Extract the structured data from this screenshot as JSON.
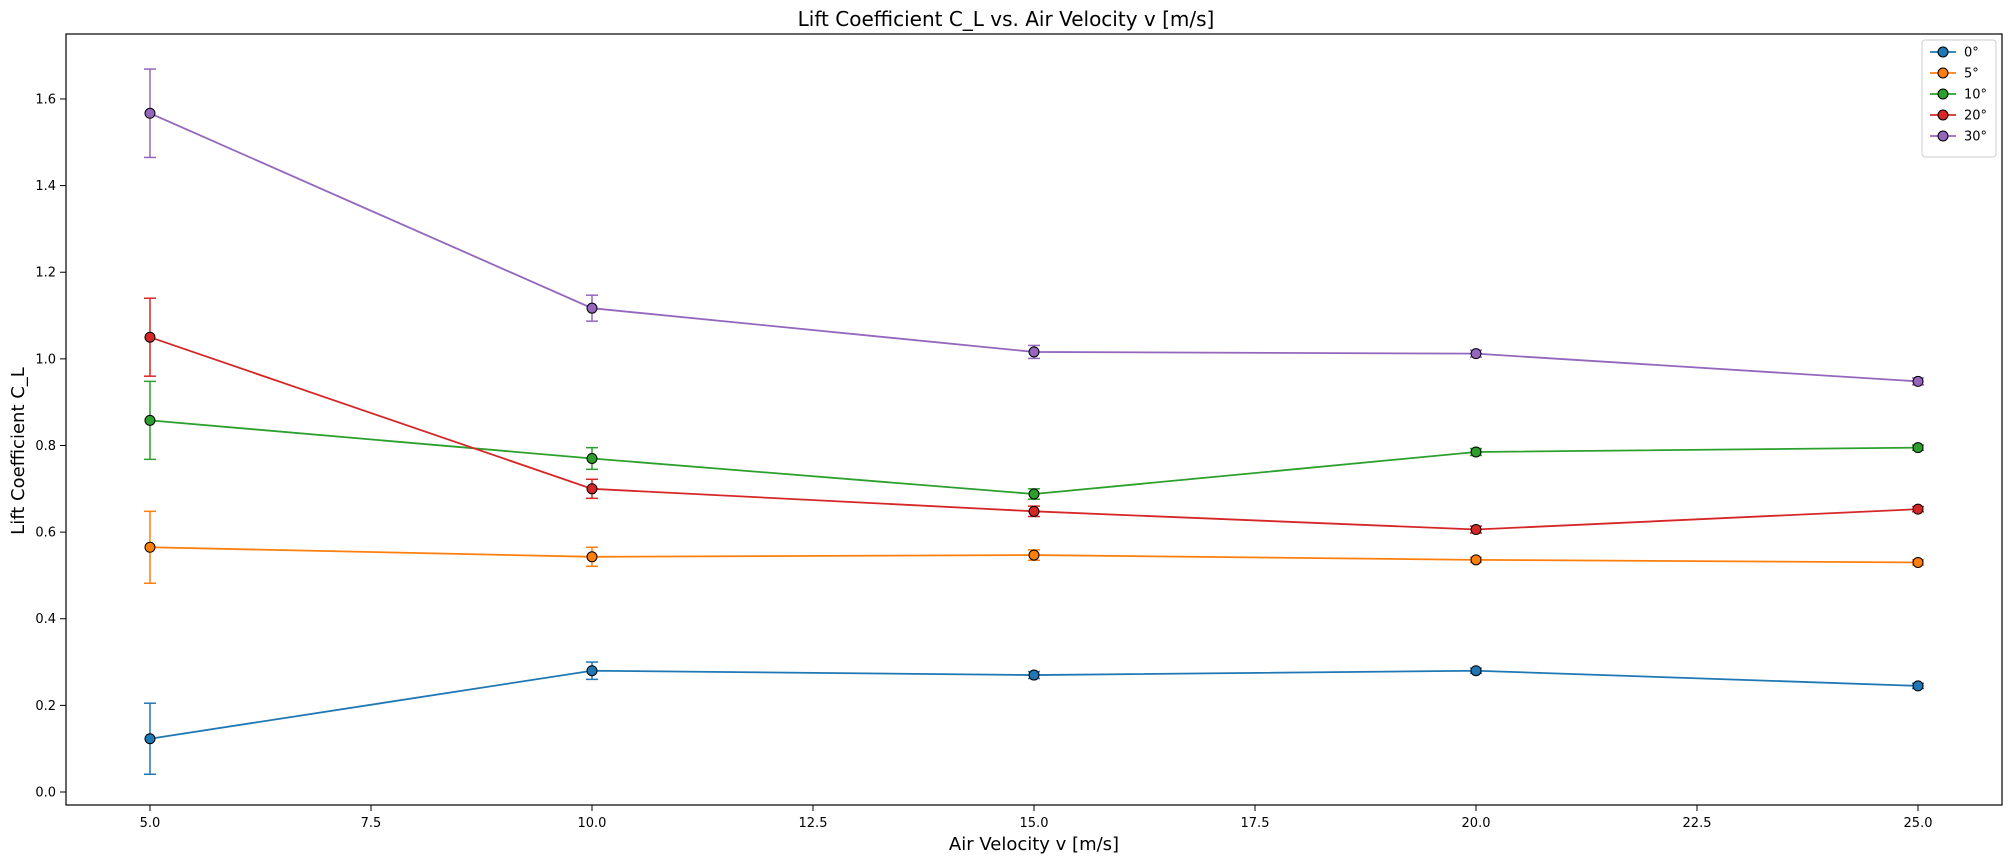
{
  "chart_data": {
    "type": "line",
    "title": "Lift Coefficient C_L vs. Air Velocity v [m/s]",
    "xlabel": "Air Velocity v [m/s]",
    "ylabel": "Lift Coefficient C_L",
    "x": [
      5,
      10,
      15,
      20,
      25
    ],
    "xlim": [
      4.05,
      25.95
    ],
    "ylim": [
      -0.03,
      1.75
    ],
    "xticks": [
      5.0,
      7.5,
      10.0,
      12.5,
      15.0,
      17.5,
      20.0,
      22.5,
      25.0
    ],
    "xtick_labels": [
      "5.0",
      "7.5",
      "10.0",
      "12.5",
      "15.0",
      "17.5",
      "20.0",
      "22.5",
      "25.0"
    ],
    "yticks": [
      0.0,
      0.2,
      0.4,
      0.6,
      0.8,
      1.0,
      1.2,
      1.4,
      1.6
    ],
    "ytick_labels": [
      "0.0",
      "0.2",
      "0.4",
      "0.6",
      "0.8",
      "1.0",
      "1.2",
      "1.4",
      "1.6"
    ],
    "grid": false,
    "legend_position": "top-right",
    "series": [
      {
        "name": "0°",
        "color": "#1f77b4",
        "values": [
          0.123,
          0.28,
          0.27,
          0.28,
          0.245
        ],
        "errors": [
          0.082,
          0.02,
          0.008,
          0.006,
          0.006
        ]
      },
      {
        "name": "5°",
        "color": "#ff7f0e",
        "values": [
          0.565,
          0.543,
          0.547,
          0.536,
          0.53
        ],
        "errors": [
          0.083,
          0.022,
          0.012,
          0.006,
          0.006
        ]
      },
      {
        "name": "10°",
        "color": "#2ca02c",
        "values": [
          0.858,
          0.77,
          0.688,
          0.785,
          0.795
        ],
        "errors": [
          0.09,
          0.025,
          0.012,
          0.008,
          0.006
        ]
      },
      {
        "name": "20°",
        "color": "#d62728",
        "values": [
          1.05,
          0.7,
          0.648,
          0.606,
          0.653
        ],
        "errors": [
          0.09,
          0.022,
          0.012,
          0.008,
          0.006
        ]
      },
      {
        "name": "30°",
        "color": "#9467bd",
        "values": [
          1.567,
          1.117,
          1.016,
          1.012,
          0.948
        ],
        "errors": [
          0.102,
          0.03,
          0.015,
          0.008,
          0.008
        ]
      }
    ]
  }
}
